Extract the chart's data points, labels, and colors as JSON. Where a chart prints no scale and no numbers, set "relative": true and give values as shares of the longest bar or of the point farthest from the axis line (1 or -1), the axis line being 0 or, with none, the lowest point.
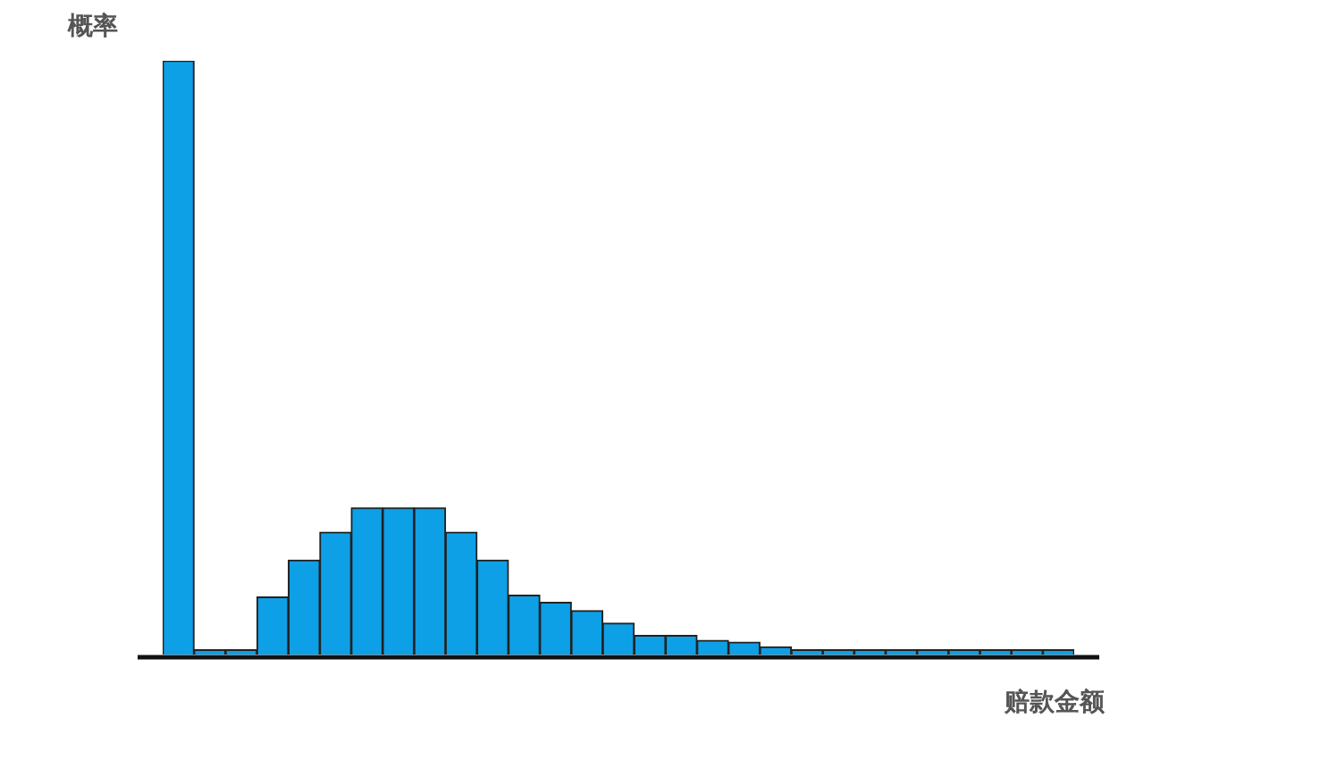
{
  "chart_data": {
    "type": "bar",
    "relative": true,
    "xlabel": "赔款金额",
    "ylabel": "概率",
    "color": "#0ea0e6",
    "categories": [
      null,
      null,
      null,
      null,
      null,
      null,
      null,
      null,
      null,
      null,
      null,
      null,
      null,
      null,
      null,
      null,
      null,
      null,
      null,
      null,
      null,
      null,
      null,
      null,
      null,
      null,
      null,
      null,
      null
    ],
    "values": [
      1,
      0.008,
      0.008,
      0.097,
      0.159,
      0.206,
      0.247,
      0.247,
      0.247,
      0.206,
      0.159,
      0.1,
      0.088,
      0.074,
      0.053,
      0.032,
      0.032,
      0.024,
      0.021,
      0.013,
      0.008,
      0.008,
      0.008,
      0.008,
      0.008,
      0.008,
      0.008,
      0.008,
      0.008
    ],
    "grid": false,
    "legend": false
  }
}
